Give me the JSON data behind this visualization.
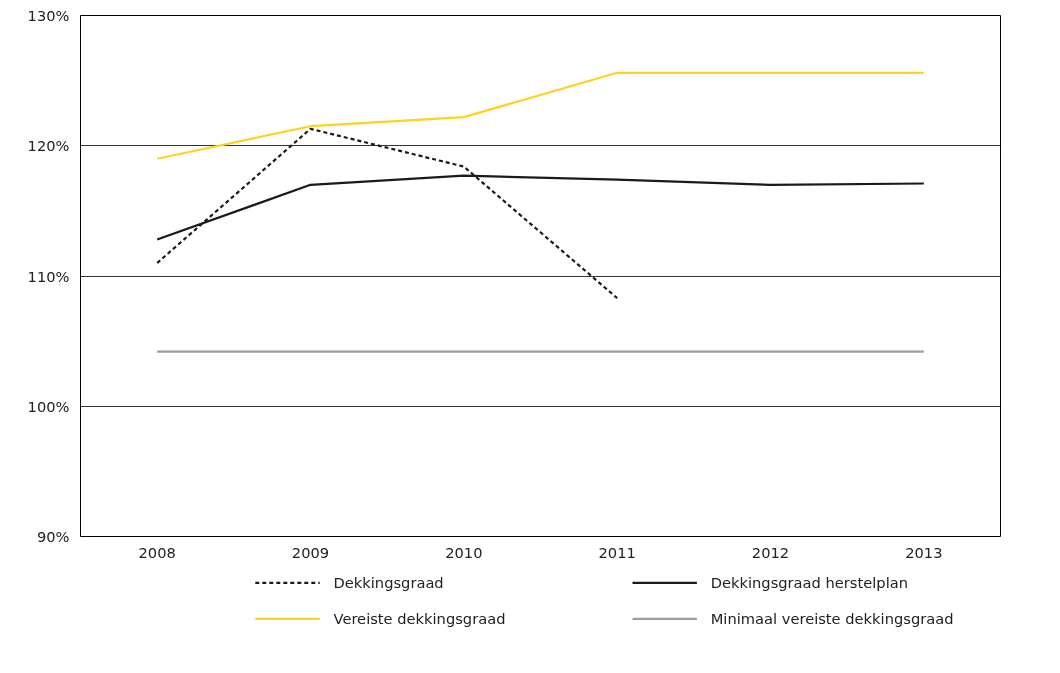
{
  "chart_data": {
    "type": "line",
    "categories": [
      "2008",
      "2009",
      "2010",
      "2011",
      "2012",
      "2013"
    ],
    "series": [
      {
        "name": "Dekkingsgraad",
        "color": "#1a1a1a",
        "line_style": "dashed",
        "values": [
          111.0,
          121.3,
          118.4,
          108.3,
          null,
          null
        ]
      },
      {
        "name": "Dekkingsgraad herstelplan",
        "color": "#1a1a1a",
        "line_style": "solid",
        "values": [
          112.8,
          117.0,
          117.7,
          117.4,
          117.0,
          117.1
        ]
      },
      {
        "name": "Vereiste dekkingsgraad",
        "color": "#ffd21f",
        "line_style": "solid",
        "values": [
          119.0,
          121.5,
          122.2,
          125.6,
          125.6,
          125.6
        ]
      },
      {
        "name": "Minimaal vereiste dekkingsgraad",
        "color": "#9d9d9d",
        "line_style": "solid",
        "values": [
          104.2,
          104.2,
          104.2,
          104.2,
          104.2,
          104.2
        ]
      }
    ],
    "ylim": [
      90,
      130
    ],
    "yticks": [
      {
        "value": 90,
        "label": "90%"
      },
      {
        "value": 100,
        "label": "100%"
      },
      {
        "value": 110,
        "label": "110%"
      },
      {
        "value": 120,
        "label": "120%"
      },
      {
        "value": 130,
        "label": "130%"
      }
    ],
    "grid": "y",
    "legend": "bottom",
    "marker": "none"
  }
}
